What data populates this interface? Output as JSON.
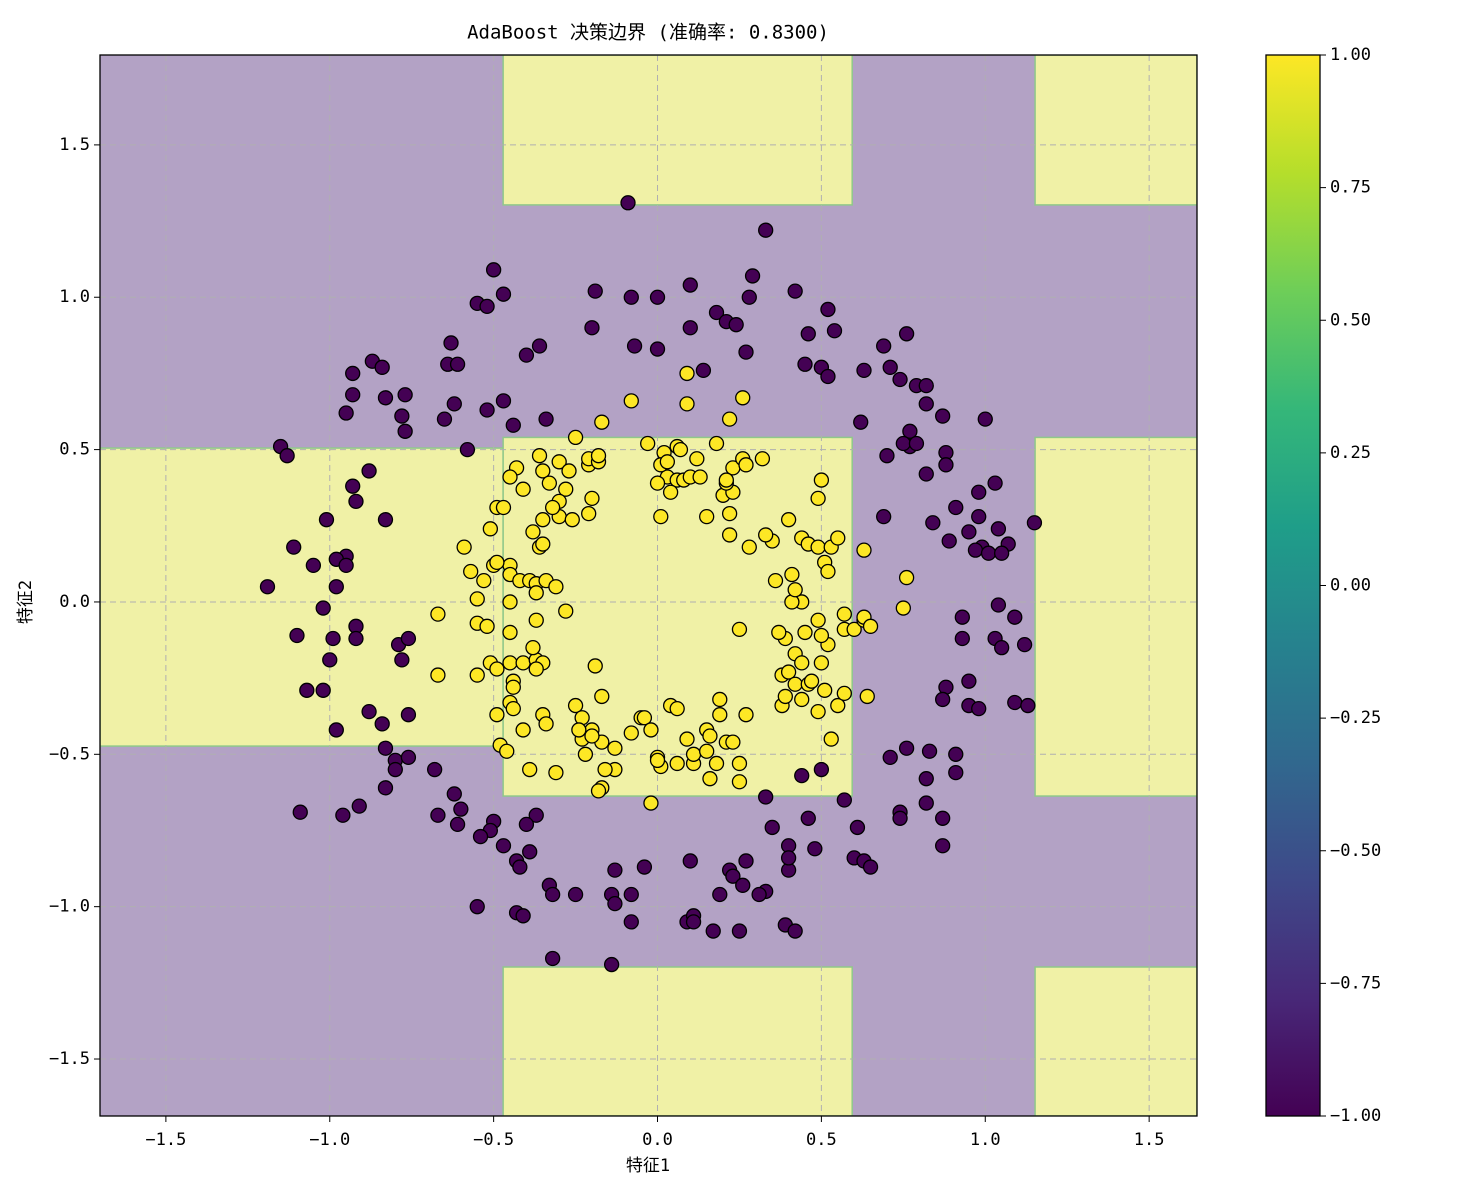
{
  "chart_data": {
    "type": "scatter",
    "title": "AdaBoost 决策边界 (准确率: 0.8300)",
    "x_label": "特征1",
    "y_label": "特征2",
    "xlim": [
      -1.701,
      1.646
    ],
    "ylim": [
      -1.687,
      1.795
    ],
    "xticks": [
      {
        "value": -1.5,
        "label": "−1.5"
      },
      {
        "value": -1.0,
        "label": "−1.0"
      },
      {
        "value": -0.5,
        "label": "−0.5"
      },
      {
        "value": 0.0,
        "label": "0.0"
      },
      {
        "value": 0.5,
        "label": "0.5"
      },
      {
        "value": 1.0,
        "label": "1.0"
      },
      {
        "value": 1.5,
        "label": "1.5"
      }
    ],
    "yticks": [
      {
        "value": -1.5,
        "label": "−1.5"
      },
      {
        "value": -1.0,
        "label": "−1.0"
      },
      {
        "value": -0.5,
        "label": "−0.5"
      },
      {
        "value": 0.0,
        "label": "0.0"
      },
      {
        "value": 0.5,
        "label": "0.5"
      },
      {
        "value": 1.0,
        "label": "1.0"
      },
      {
        "value": 1.5,
        "label": "1.5"
      }
    ],
    "grid": true,
    "background_color": "#b3a2c5",
    "regions": [
      {
        "x": [
          -1.701,
          -0.471
        ],
        "y": [
          -0.473,
          0.505
        ],
        "color": "#f0f1a6"
      },
      {
        "x": [
          -0.471,
          0.594
        ],
        "y": [
          1.303,
          1.795
        ],
        "color": "#f0f1a6"
      },
      {
        "x": [
          -0.471,
          0.594
        ],
        "y": [
          -0.637,
          0.54
        ],
        "color": "#f0f1a6"
      },
      {
        "x": [
          -0.471,
          0.594
        ],
        "y": [
          -1.687,
          -1.198
        ],
        "color": "#f0f1a6"
      },
      {
        "x": [
          1.152,
          1.646
        ],
        "y": [
          1.303,
          1.795
        ],
        "color": "#f0f1a6"
      },
      {
        "x": [
          1.152,
          1.646
        ],
        "y": [
          -0.637,
          0.54
        ],
        "color": "#f0f1a6"
      },
      {
        "x": [
          1.152,
          1.646
        ],
        "y": [
          -1.687,
          -1.198
        ],
        "color": "#f0f1a6"
      }
    ],
    "series": [
      {
        "color": "#440154",
        "x": [
          -0.09,
          0.33,
          -0.5,
          0.29,
          -0.19,
          0.1,
          -0.08,
          0.0,
          -0.47,
          0.42,
          -0.55,
          -0.52,
          0.18,
          0.28,
          0.52,
          -0.2,
          0.1,
          0.21,
          0.24,
          0.46,
          0.54,
          0.69,
          0.76,
          -0.36,
          -0.4,
          -0.07,
          0.0,
          0.27,
          -0.63,
          -0.64,
          -0.61,
          -0.93,
          -0.87,
          -0.84,
          0.14,
          0.45,
          0.5,
          0.52,
          0.63,
          0.71,
          0.74,
          -0.77,
          -0.83,
          -0.93,
          -0.95,
          -0.78,
          -0.77,
          -0.65,
          -0.62,
          -0.52,
          -0.47,
          -0.44,
          -0.34,
          0.79,
          0.82,
          0.82,
          0.87,
          1.0,
          0.77,
          0.62,
          0.77,
          0.75,
          0.79,
          0.88,
          0.88,
          0.7,
          0.82,
          -1.15,
          -1.13,
          -0.58,
          -0.88,
          -0.93,
          -0.92,
          0.91,
          0.98,
          1.03,
          1.15,
          0.98,
          0.84,
          0.69,
          1.04,
          1.07,
          0.95,
          0.89,
          0.99,
          0.97,
          1.01,
          1.05,
          -1.01,
          -0.83,
          -1.11,
          -1.05,
          -0.95,
          -0.98,
          -0.95,
          -1.19,
          -0.98,
          -1.02,
          -0.99,
          -1.0,
          -0.92,
          -0.92,
          -1.1,
          -0.79,
          -0.76,
          -0.78,
          1.04,
          1.09,
          0.93,
          0.93,
          1.03,
          1.05,
          1.12,
          0.88,
          0.95,
          0.87,
          0.95,
          0.98,
          1.09,
          1.13,
          -1.07,
          -1.02,
          -0.98,
          -0.88,
          -0.84,
          -0.76,
          -0.83,
          -0.8,
          -0.76,
          -0.8,
          -0.68,
          -0.83,
          -0.62,
          0.76,
          0.71,
          0.83,
          0.91,
          0.91,
          0.82,
          0.82,
          0.87,
          0.87,
          0.74,
          0.74,
          -1.09,
          -0.96,
          -0.91,
          -0.67,
          -0.6,
          -0.61,
          -0.5,
          -0.51,
          -0.54,
          -0.47,
          -0.37,
          -0.4,
          -0.43,
          -0.39,
          -0.42,
          -0.13,
          -0.04,
          0.57,
          0.61,
          0.46,
          0.48,
          0.4,
          0.35,
          0.33,
          0.44,
          0.5,
          0.27,
          0.22,
          0.1,
          0.23,
          0.26,
          0.33,
          0.4,
          0.4,
          0.6,
          0.63,
          0.65,
          -0.55,
          -0.43,
          -0.41,
          -0.33,
          -0.32,
          -0.25,
          -0.14,
          -0.13,
          -0.08,
          -0.08,
          0.19,
          0.31,
          0.09,
          0.11,
          0.11,
          0.17,
          0.25,
          0.39,
          0.42,
          -0.32,
          -0.14
        ],
        "values": [
          1.31,
          1.22,
          1.09,
          1.07,
          1.02,
          1.04,
          1.0,
          1.0,
          1.01,
          1.02,
          0.98,
          0.97,
          0.95,
          1.0,
          0.96,
          0.9,
          0.9,
          0.92,
          0.91,
          0.88,
          0.89,
          0.84,
          0.88,
          0.84,
          0.81,
          0.84,
          0.83,
          0.82,
          0.85,
          0.78,
          0.78,
          0.75,
          0.79,
          0.77,
          0.76,
          0.78,
          0.77,
          0.74,
          0.76,
          0.77,
          0.73,
          0.68,
          0.67,
          0.68,
          0.62,
          0.61,
          0.56,
          0.6,
          0.65,
          0.63,
          0.66,
          0.58,
          0.6,
          0.71,
          0.71,
          0.65,
          0.61,
          0.6,
          0.56,
          0.59,
          0.51,
          0.52,
          0.52,
          0.49,
          0.45,
          0.48,
          0.42,
          0.51,
          0.48,
          0.5,
          0.43,
          0.38,
          0.33,
          0.31,
          0.36,
          0.39,
          0.26,
          0.28,
          0.26,
          0.28,
          0.24,
          0.19,
          0.23,
          0.2,
          0.18,
          0.17,
          0.16,
          0.16,
          0.27,
          0.27,
          0.18,
          0.12,
          0.15,
          0.14,
          0.12,
          0.05,
          0.05,
          -0.02,
          -0.12,
          -0.19,
          -0.08,
          -0.12,
          -0.11,
          -0.14,
          -0.12,
          -0.19,
          -0.01,
          -0.05,
          -0.05,
          -0.12,
          -0.12,
          -0.15,
          -0.14,
          -0.28,
          -0.26,
          -0.32,
          -0.34,
          -0.35,
          -0.33,
          -0.34,
          -0.29,
          -0.29,
          -0.42,
          -0.36,
          -0.4,
          -0.37,
          -0.48,
          -0.52,
          -0.51,
          -0.55,
          -0.55,
          -0.61,
          -0.63,
          -0.48,
          -0.51,
          -0.49,
          -0.5,
          -0.56,
          -0.58,
          -0.66,
          -0.71,
          -0.8,
          -0.69,
          -0.71,
          -0.69,
          -0.7,
          -0.67,
          -0.7,
          -0.68,
          -0.73,
          -0.72,
          -0.75,
          -0.77,
          -0.8,
          -0.7,
          -0.73,
          -0.85,
          -0.82,
          -0.87,
          -0.88,
          -0.87,
          -0.65,
          -0.74,
          -0.71,
          -0.81,
          -0.8,
          -0.74,
          -0.64,
          -0.57,
          -0.55,
          -0.85,
          -0.88,
          -0.85,
          -0.9,
          -0.93,
          -0.95,
          -0.88,
          -0.84,
          -0.84,
          -0.85,
          -0.87,
          -1.0,
          -1.02,
          -1.03,
          -0.93,
          -0.96,
          -0.96,
          -0.96,
          -0.99,
          -0.96,
          -1.05,
          -0.96,
          -0.96,
          -1.05,
          -1.03,
          -1.05,
          -1.08,
          -1.08,
          -1.06,
          -1.08,
          -1.17,
          -1.19
        ]
      },
      {
        "color": "#fde725",
        "x": [
          -0.25,
          -0.17,
          -0.08,
          0.09,
          0.09,
          0.26,
          0.22,
          -0.03,
          0.02,
          0.06,
          0.07,
          0.12,
          0.18,
          0.23,
          0.26,
          0.27,
          0.32,
          -0.21,
          -0.21,
          -0.18,
          -0.18,
          -0.3,
          -0.36,
          -0.35,
          -0.43,
          -0.45,
          -0.41,
          -0.33,
          -0.27,
          -0.28,
          -0.3,
          -0.2,
          -0.21,
          -0.3,
          -0.32,
          -0.26,
          -0.49,
          -0.47,
          -0.51,
          -0.35,
          -0.36,
          -0.35,
          -0.45,
          -0.5,
          -0.49,
          -0.59,
          -0.57,
          -0.53,
          -0.55,
          -0.45,
          -0.42,
          -0.39,
          -0.37,
          -0.34,
          -0.31,
          -0.37,
          -0.45,
          -0.28,
          -0.55,
          -0.52,
          -0.67,
          -0.45,
          -0.51,
          -0.49,
          -0.45,
          -0.41,
          -0.37,
          -0.38,
          -0.35,
          -0.44,
          -0.44,
          -0.37,
          -0.67,
          -0.55,
          -0.45,
          -0.44,
          -0.49,
          -0.41,
          -0.35,
          -0.34,
          -0.48,
          -0.25,
          -0.23,
          -0.23,
          -0.2,
          -0.17,
          -0.17,
          -0.19,
          -0.13,
          -0.13,
          -0.08,
          -0.05,
          -0.04,
          -0.17,
          -0.18,
          -0.22,
          -0.02,
          -0.02,
          0.0,
          0.01,
          0.04,
          0.06,
          0.06,
          0.09,
          0.11,
          0.11,
          0.15,
          0.16,
          0.19,
          0.19,
          0.15,
          0.18,
          0.16,
          0.21,
          0.23,
          0.25,
          0.25,
          0.27,
          0.38,
          0.39,
          0.38,
          0.4,
          0.42,
          0.44,
          0.46,
          0.47,
          0.49,
          0.51,
          0.53,
          0.55,
          0.57,
          0.64,
          0.42,
          0.44,
          0.5,
          0.52,
          0.5,
          0.45,
          0.49,
          0.39,
          0.37,
          0.25,
          0.44,
          0.41,
          0.42,
          0.41,
          0.36,
          0.4,
          0.35,
          0.33,
          0.44,
          0.46,
          0.49,
          0.53,
          0.55,
          0.51,
          0.52,
          0.49,
          0.5,
          0.63,
          0.57,
          0.6,
          0.57,
          0.63,
          0.63,
          0.65,
          0.75,
          0.76,
          0.22,
          0.28,
          0.15,
          0.22,
          0.2,
          0.23,
          0.21,
          0.21,
          0.03,
          0.06,
          0.08,
          0.1,
          0.13,
          0.04,
          0.0,
          0.01,
          0.01,
          0.03,
          -0.38,
          -0.37,
          -0.46,
          -0.39,
          -0.31,
          -0.2,
          -0.16,
          -0.24,
          0.0
        ],
        "values": [
          0.54,
          0.59,
          0.66,
          0.75,
          0.65,
          0.67,
          0.6,
          0.52,
          0.49,
          0.51,
          0.5,
          0.47,
          0.52,
          0.44,
          0.47,
          0.45,
          0.47,
          0.45,
          0.47,
          0.46,
          0.48,
          0.46,
          0.48,
          0.43,
          0.44,
          0.41,
          0.37,
          0.39,
          0.43,
          0.37,
          0.33,
          0.34,
          0.29,
          0.28,
          0.31,
          0.27,
          0.31,
          0.31,
          0.24,
          0.27,
          0.18,
          0.19,
          0.12,
          0.12,
          0.13,
          0.18,
          0.1,
          0.07,
          0.01,
          0.09,
          0.07,
          0.07,
          0.06,
          0.07,
          0.05,
          0.03,
          0.0,
          -0.03,
          -0.07,
          -0.08,
          -0.04,
          -0.1,
          -0.2,
          -0.22,
          -0.2,
          -0.2,
          -0.19,
          -0.15,
          -0.2,
          -0.26,
          -0.28,
          -0.22,
          -0.24,
          -0.24,
          -0.33,
          -0.35,
          -0.37,
          -0.42,
          -0.37,
          -0.4,
          -0.47,
          -0.34,
          -0.38,
          -0.45,
          -0.42,
          -0.31,
          -0.46,
          -0.21,
          -0.48,
          -0.55,
          -0.43,
          -0.38,
          -0.38,
          -0.61,
          -0.62,
          -0.5,
          -0.66,
          -0.42,
          -0.51,
          -0.54,
          -0.34,
          -0.35,
          -0.53,
          -0.45,
          -0.53,
          -0.5,
          -0.42,
          -0.44,
          -0.37,
          -0.32,
          -0.49,
          -0.53,
          -0.58,
          -0.46,
          -0.46,
          -0.53,
          -0.59,
          -0.37,
          -0.34,
          -0.31,
          -0.24,
          -0.23,
          -0.27,
          -0.32,
          -0.27,
          -0.26,
          -0.36,
          -0.29,
          -0.45,
          -0.34,
          -0.3,
          -0.31,
          -0.17,
          -0.2,
          -0.2,
          -0.14,
          -0.11,
          -0.1,
          -0.06,
          -0.12,
          -0.1,
          -0.09,
          0.0,
          0.0,
          0.04,
          0.09,
          0.07,
          0.27,
          0.2,
          0.22,
          0.21,
          0.19,
          0.18,
          0.18,
          0.21,
          0.13,
          0.1,
          0.34,
          0.4,
          0.17,
          -0.09,
          -0.09,
          -0.04,
          -0.06,
          -0.05,
          -0.08,
          -0.02,
          0.08,
          0.22,
          0.18,
          0.28,
          0.29,
          0.35,
          0.36,
          0.39,
          0.4,
          0.41,
          0.4,
          0.4,
          0.41,
          0.41,
          0.36,
          0.39,
          0.28,
          0.45,
          0.46,
          0.23,
          -0.06,
          -0.49,
          -0.55,
          -0.56,
          -0.44,
          -0.55,
          -0.42,
          -0.52
        ]
      }
    ],
    "colorbar": {
      "ylim": [
        -1,
        1
      ],
      "yticks": [
        {
          "value": -1,
          "label": "−1.00"
        },
        {
          "value": -0.75,
          "label": "−0.75"
        },
        {
          "value": -0.5,
          "label": "−0.50"
        },
        {
          "value": -0.25,
          "label": "−0.25"
        },
        {
          "value": 0,
          "label": "0.00"
        },
        {
          "value": 0.25,
          "label": "0.25"
        },
        {
          "value": 0.5,
          "label": "0.50"
        },
        {
          "value": 0.75,
          "label": "0.75"
        },
        {
          "value": 1,
          "label": "1.00"
        }
      ],
      "colors": [
        "#440154",
        "#482878",
        "#3e4989",
        "#31688e",
        "#26828e",
        "#1f9e89",
        "#35b779",
        "#6ece58",
        "#b5de2b",
        "#fde725"
      ]
    }
  }
}
